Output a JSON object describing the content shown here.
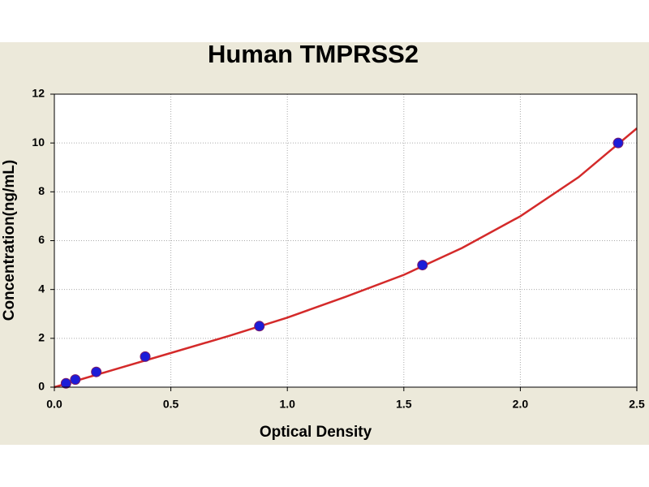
{
  "chart_data": {
    "type": "scatter",
    "title": "Human TMPRSS2",
    "xlabel": "Optical Density",
    "ylabel": "Concentration(ng/mL)",
    "series": [
      {
        "type": "scatter",
        "color": "#1c1cd8",
        "x": [
          0.05,
          0.09,
          0.18,
          0.39,
          0.88,
          1.58,
          2.42
        ],
        "values": [
          0.156,
          0.312,
          0.625,
          1.25,
          2.5,
          5,
          10
        ]
      },
      {
        "type": "line",
        "color": "#d42a2a",
        "x": [
          0,
          0.25,
          0.5,
          0.75,
          1.0,
          1.25,
          1.5,
          1.75,
          2.0,
          2.25,
          2.5
        ],
        "values": [
          0.0,
          0.7,
          1.4,
          2.1,
          2.85,
          3.7,
          4.6,
          5.7,
          7.0,
          8.6,
          10.6
        ]
      }
    ],
    "xlim": [
      0,
      2.5
    ],
    "ylim": [
      0,
      12
    ],
    "xticks": [
      {
        "value": 0,
        "label": "0.0"
      },
      0.5,
      {
        "value": 1,
        "label": "1.0"
      },
      1.5,
      {
        "value": 2,
        "label": "2.0"
      },
      2.5
    ],
    "yticks": [
      0,
      2,
      4,
      6,
      8,
      10,
      12
    ],
    "grid": true
  }
}
